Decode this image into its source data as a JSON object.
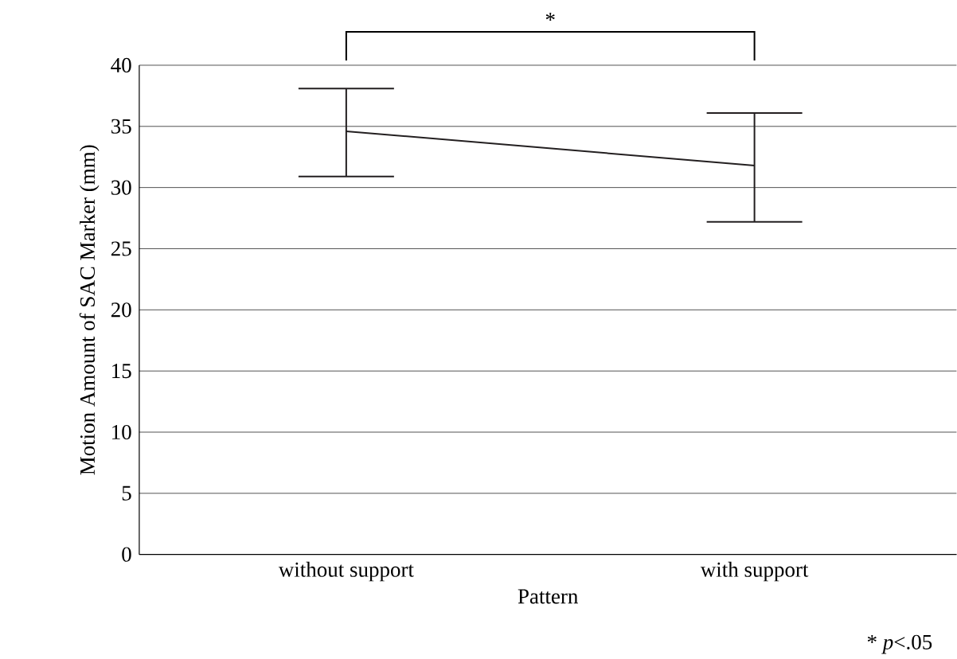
{
  "chart_data": {
    "type": "line",
    "xlabel": "Pattern",
    "ylabel": "Motion Amount of SAC Marker (mm)",
    "categories": [
      "without support",
      "with support"
    ],
    "series": [
      {
        "color": "#231f20",
        "values": [
          34.6,
          31.8
        ],
        "errors": [
          [
            30.9,
            38.1
          ],
          [
            27.2,
            36.1
          ]
        ]
      }
    ],
    "ylim": [
      0,
      40
    ],
    "yticks": [
      0,
      5,
      10,
      15,
      20,
      25,
      30,
      35,
      40
    ],
    "grid": "y",
    "marker": "none",
    "line_style": "solid",
    "annotations": [
      "*",
      "* *p*<.05"
    ]
  }
}
